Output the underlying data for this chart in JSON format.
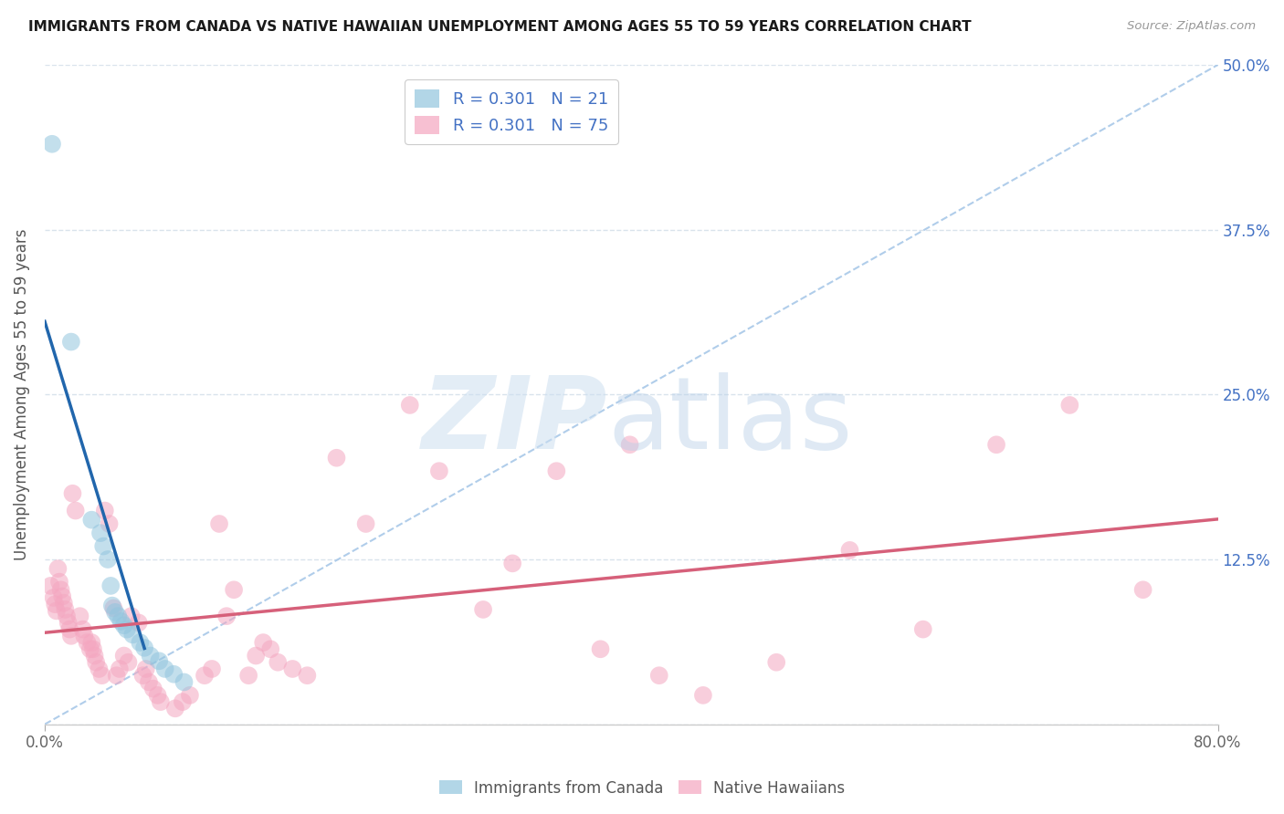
{
  "title": "IMMIGRANTS FROM CANADA VS NATIVE HAWAIIAN UNEMPLOYMENT AMONG AGES 55 TO 59 YEARS CORRELATION CHART",
  "source": "Source: ZipAtlas.com",
  "ylabel": "Unemployment Among Ages 55 to 59 years",
  "xlim": [
    0.0,
    0.8
  ],
  "ylim": [
    0.0,
    0.5
  ],
  "yticks": [
    0.0,
    0.125,
    0.25,
    0.375,
    0.5
  ],
  "yticklabels_right": [
    "",
    "12.5%",
    "25.0%",
    "37.5%",
    "50.0%"
  ],
  "canada_color": "#92c5de",
  "hawaii_color": "#f4a6c0",
  "canada_trend_color": "#2166ac",
  "hawaii_trend_color": "#d6607a",
  "diagonal_color": "#a8c8e8",
  "background_color": "#ffffff",
  "grid_color": "#d0dce8",
  "canada_points": [
    [
      0.005,
      0.44
    ],
    [
      0.018,
      0.29
    ],
    [
      0.032,
      0.155
    ],
    [
      0.038,
      0.145
    ],
    [
      0.04,
      0.135
    ],
    [
      0.043,
      0.125
    ],
    [
      0.045,
      0.105
    ],
    [
      0.046,
      0.09
    ],
    [
      0.048,
      0.085
    ],
    [
      0.05,
      0.082
    ],
    [
      0.052,
      0.078
    ],
    [
      0.054,
      0.075
    ],
    [
      0.056,
      0.072
    ],
    [
      0.06,
      0.068
    ],
    [
      0.065,
      0.062
    ],
    [
      0.068,
      0.058
    ],
    [
      0.072,
      0.052
    ],
    [
      0.078,
      0.048
    ],
    [
      0.082,
      0.042
    ],
    [
      0.088,
      0.038
    ],
    [
      0.095,
      0.032
    ]
  ],
  "hawaii_points": [
    [
      0.004,
      0.105
    ],
    [
      0.006,
      0.096
    ],
    [
      0.007,
      0.091
    ],
    [
      0.008,
      0.086
    ],
    [
      0.009,
      0.118
    ],
    [
      0.01,
      0.108
    ],
    [
      0.011,
      0.102
    ],
    [
      0.012,
      0.097
    ],
    [
      0.013,
      0.092
    ],
    [
      0.014,
      0.087
    ],
    [
      0.015,
      0.082
    ],
    [
      0.016,
      0.077
    ],
    [
      0.017,
      0.072
    ],
    [
      0.018,
      0.067
    ],
    [
      0.019,
      0.175
    ],
    [
      0.021,
      0.162
    ],
    [
      0.024,
      0.082
    ],
    [
      0.026,
      0.072
    ],
    [
      0.027,
      0.067
    ],
    [
      0.029,
      0.062
    ],
    [
      0.031,
      0.057
    ],
    [
      0.032,
      0.062
    ],
    [
      0.033,
      0.057
    ],
    [
      0.034,
      0.052
    ],
    [
      0.035,
      0.047
    ],
    [
      0.037,
      0.042
    ],
    [
      0.039,
      0.037
    ],
    [
      0.041,
      0.162
    ],
    [
      0.044,
      0.152
    ],
    [
      0.047,
      0.088
    ],
    [
      0.049,
      0.037
    ],
    [
      0.051,
      0.042
    ],
    [
      0.054,
      0.052
    ],
    [
      0.057,
      0.047
    ],
    [
      0.059,
      0.082
    ],
    [
      0.064,
      0.077
    ],
    [
      0.067,
      0.037
    ],
    [
      0.069,
      0.042
    ],
    [
      0.071,
      0.032
    ],
    [
      0.074,
      0.027
    ],
    [
      0.077,
      0.022
    ],
    [
      0.079,
      0.017
    ],
    [
      0.089,
      0.012
    ],
    [
      0.094,
      0.017
    ],
    [
      0.099,
      0.022
    ],
    [
      0.109,
      0.037
    ],
    [
      0.114,
      0.042
    ],
    [
      0.119,
      0.152
    ],
    [
      0.124,
      0.082
    ],
    [
      0.129,
      0.102
    ],
    [
      0.139,
      0.037
    ],
    [
      0.144,
      0.052
    ],
    [
      0.149,
      0.062
    ],
    [
      0.154,
      0.057
    ],
    [
      0.159,
      0.047
    ],
    [
      0.169,
      0.042
    ],
    [
      0.179,
      0.037
    ],
    [
      0.199,
      0.202
    ],
    [
      0.219,
      0.152
    ],
    [
      0.249,
      0.242
    ],
    [
      0.269,
      0.192
    ],
    [
      0.299,
      0.087
    ],
    [
      0.319,
      0.122
    ],
    [
      0.349,
      0.192
    ],
    [
      0.379,
      0.057
    ],
    [
      0.399,
      0.212
    ],
    [
      0.419,
      0.037
    ],
    [
      0.449,
      0.022
    ],
    [
      0.499,
      0.047
    ],
    [
      0.549,
      0.132
    ],
    [
      0.599,
      0.072
    ],
    [
      0.649,
      0.212
    ],
    [
      0.699,
      0.242
    ],
    [
      0.749,
      0.102
    ]
  ]
}
